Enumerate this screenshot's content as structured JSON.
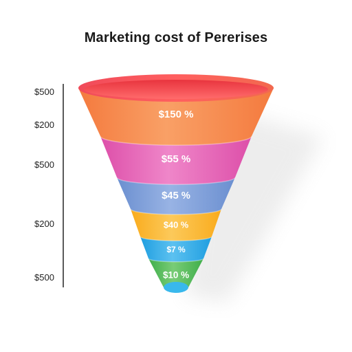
{
  "chart_data": {
    "type": "funnel",
    "title": "Marketing cost of Pererises",
    "y_tick_labels": [
      "$500",
      "$200",
      "$500",
      "$200",
      "$500"
    ],
    "segments": [
      {
        "label": "$150 %",
        "color": "#f47a3e",
        "color_light": "#f9a066"
      },
      {
        "label": "$55 %",
        "color": "#dd4fa9",
        "color_light": "#ef86c9"
      },
      {
        "label": "$45 %",
        "color": "#6b8fd0",
        "color_light": "#98b3e4"
      },
      {
        "label": "$40 %",
        "color": "#f9ab1c",
        "color_light": "#fcc95a"
      },
      {
        "label": "$7 %",
        "color": "#1f9ee0",
        "color_light": "#5cc1f0"
      },
      {
        "label": "$10 %",
        "color": "#3fae4b",
        "color_light": "#79cc76"
      }
    ],
    "rim_color": "#f0404a",
    "tip_color": "#39b8ec"
  }
}
